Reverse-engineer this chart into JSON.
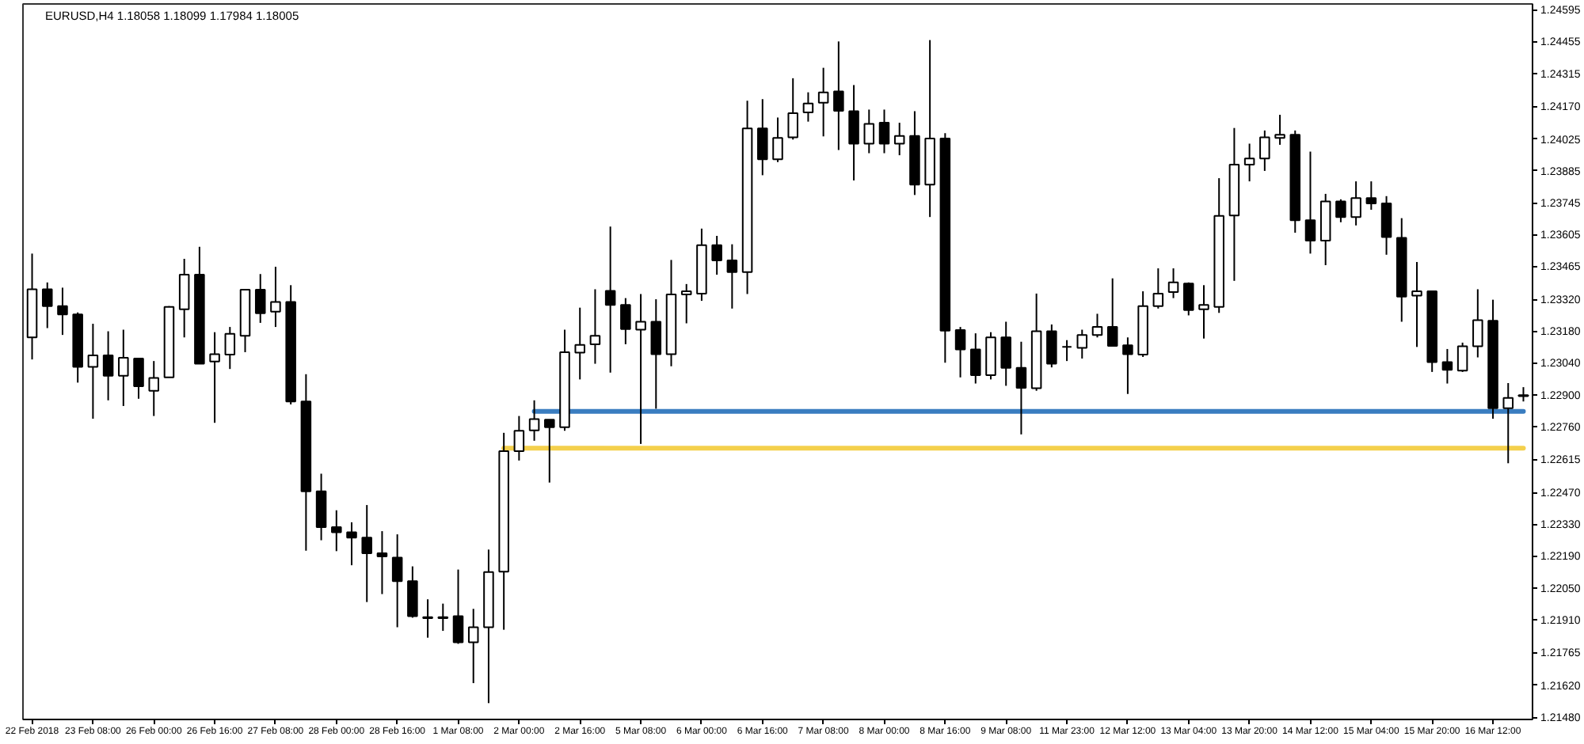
{
  "chart_data": {
    "type": "candlestick",
    "title": "EURUSD,H4  1.18058 1.18099 1.17984 1.18005",
    "color": "#000000",
    "categories": [
      "22 Feb 2018",
      null,
      null,
      null,
      "23 Feb 08:00",
      null,
      null,
      null,
      "26 Feb 00:00",
      null,
      null,
      null,
      "26 Feb 16:00",
      null,
      null,
      null,
      "27 Feb 08:00",
      null,
      null,
      null,
      "28 Feb 00:00",
      null,
      null,
      null,
      "28 Feb 16:00",
      null,
      null,
      null,
      "1 Mar 08:00",
      null,
      null,
      null,
      "2 Mar 00:00",
      null,
      null,
      null,
      "2 Mar 16:00",
      null,
      null,
      null,
      "5 Mar 08:00",
      null,
      null,
      null,
      "6 Mar 00:00",
      null,
      null,
      null,
      "6 Mar 16:00",
      null,
      null,
      null,
      "7 Mar 08:00",
      null,
      null,
      null,
      "8 Mar 00:00",
      null,
      null,
      null,
      "8 Mar 16:00",
      null,
      null,
      null,
      "9 Mar 08:00",
      null,
      null,
      null,
      "11 Mar 23:00",
      null,
      null,
      null,
      "12 Mar 12:00",
      null,
      null,
      null,
      "13 Mar 04:00",
      null,
      null,
      null,
      "13 Mar 20:00",
      null,
      null,
      null,
      "14 Mar 12:00",
      null,
      null,
      null,
      "15 Mar 04:00",
      null,
      null,
      null,
      "15 Mar 20:00",
      null,
      null,
      null,
      "16 Mar 12:00",
      null,
      null
    ],
    "ohlc": [
      [
        1.23152,
        1.23521,
        1.23055,
        1.23364
      ],
      [
        1.23364,
        1.23394,
        1.23193,
        1.2329
      ],
      [
        1.2329,
        1.23371,
        1.23163,
        1.23253
      ],
      [
        1.23253,
        1.23262,
        1.22953,
        1.23022
      ],
      [
        1.23022,
        1.23212,
        1.22794,
        1.23073
      ],
      [
        1.23073,
        1.23179,
        1.22875,
        1.22983
      ],
      [
        1.22983,
        1.23186,
        1.2285,
        1.23062
      ],
      [
        1.23059,
        1.23059,
        1.22882,
        1.22937
      ],
      [
        1.22917,
        1.23048,
        1.22806,
        1.22974
      ],
      [
        1.22976,
        1.2329,
        1.22976,
        1.23286
      ],
      [
        1.23276,
        1.23498,
        1.23152,
        1.23428
      ],
      [
        1.23428,
        1.23551,
        1.23036,
        1.23036
      ],
      [
        1.23046,
        1.23175,
        1.22776,
        1.23078
      ],
      [
        1.23076,
        1.23198,
        1.23013,
        1.23168
      ],
      [
        1.23159,
        1.23362,
        1.23087,
        1.23362
      ],
      [
        1.23362,
        1.23431,
        1.23216,
        1.23258
      ],
      [
        1.23265,
        1.23463,
        1.23198,
        1.23308
      ],
      [
        1.23308,
        1.23382,
        1.22857,
        1.2287
      ],
      [
        1.2287,
        1.2299,
        1.22213,
        1.22474
      ],
      [
        1.22474,
        1.22552,
        1.22259,
        1.22317
      ],
      [
        1.22317,
        1.22391,
        1.22211,
        1.22294
      ],
      [
        1.22294,
        1.22338,
        1.22149,
        1.22271
      ],
      [
        1.22271,
        1.22414,
        1.21987,
        1.22202
      ],
      [
        1.22202,
        1.22299,
        1.22022,
        1.22188
      ],
      [
        1.22183,
        1.22285,
        1.21876,
        1.22079
      ],
      [
        1.22079,
        1.22144,
        1.21918,
        1.21925
      ],
      [
        1.2192,
        1.21999,
        1.2183,
        1.21916
      ],
      [
        1.21916,
        1.2198,
        1.2186,
        1.2192
      ],
      [
        1.21925,
        1.2213,
        1.21803,
        1.2181
      ],
      [
        1.2181,
        1.21957,
        1.2163,
        1.21876
      ],
      [
        1.21876,
        1.22218,
        1.21542,
        1.22119
      ],
      [
        1.22121,
        1.22732,
        1.21865,
        1.22651
      ],
      [
        1.22651,
        1.22806,
        1.2261,
        1.22741
      ],
      [
        1.22743,
        1.22875,
        1.22697,
        1.22792
      ],
      [
        1.2279,
        1.2279,
        1.22513,
        1.22757
      ],
      [
        1.22757,
        1.23186,
        1.22741,
        1.23087
      ],
      [
        1.23085,
        1.23283,
        1.22967,
        1.23119
      ],
      [
        1.23122,
        1.23364,
        1.23036,
        1.23159
      ],
      [
        1.23357,
        1.2364,
        1.22997,
        1.23295
      ],
      [
        1.23295,
        1.23325,
        1.23122,
        1.23189
      ],
      [
        1.23186,
        1.23343,
        1.22683,
        1.23221
      ],
      [
        1.23221,
        1.2332,
        1.22838,
        1.23078
      ],
      [
        1.23078,
        1.23493,
        1.23025,
        1.23341
      ],
      [
        1.23341,
        1.23387,
        1.23214,
        1.23355
      ],
      [
        1.23345,
        1.23631,
        1.23313,
        1.23558
      ],
      [
        1.23558,
        1.23599,
        1.23428,
        1.23491
      ],
      [
        1.23491,
        1.23562,
        1.23279,
        1.2344
      ],
      [
        1.2344,
        1.24194,
        1.23343,
        1.24072
      ],
      [
        1.24072,
        1.24201,
        1.23866,
        1.23936
      ],
      [
        1.23936,
        1.2412,
        1.23924,
        1.2403
      ],
      [
        1.24033,
        1.24293,
        1.24023,
        1.24139
      ],
      [
        1.24143,
        1.24231,
        1.24102,
        1.24182
      ],
      [
        1.24185,
        1.24339,
        1.24037,
        1.24231
      ],
      [
        1.24235,
        1.24455,
        1.23977,
        1.2415
      ],
      [
        1.24148,
        1.24263,
        1.23843,
        1.24005
      ],
      [
        1.24005,
        1.24155,
        1.23963,
        1.24092
      ],
      [
        1.24097,
        1.24155,
        1.23963,
        1.24005
      ],
      [
        1.24005,
        1.24097,
        1.23954,
        1.24039
      ],
      [
        1.24039,
        1.24148,
        1.23779,
        1.23825
      ],
      [
        1.23825,
        1.24461,
        1.23682,
        1.24028
      ],
      [
        1.24028,
        1.24051,
        1.23041,
        1.23182
      ],
      [
        1.23184,
        1.23198,
        1.22976,
        1.23099
      ],
      [
        1.23099,
        1.2317,
        1.22949,
        1.22986
      ],
      [
        1.22986,
        1.23175,
        1.22967,
        1.23152
      ],
      [
        1.23152,
        1.23221,
        1.22939,
        1.23018
      ],
      [
        1.23018,
        1.23133,
        1.22725,
        1.2293
      ],
      [
        1.22928,
        1.23345,
        1.22917,
        1.23179
      ],
      [
        1.23179,
        1.23209,
        1.2302,
        1.23036
      ],
      [
        1.2311,
        1.2314,
        1.23048,
        1.2311
      ],
      [
        1.23106,
        1.23186,
        1.23059,
        1.23163
      ],
      [
        1.23163,
        1.23256,
        1.23152,
        1.23198
      ],
      [
        1.23198,
        1.23412,
        1.23115,
        1.23115
      ],
      [
        1.23117,
        1.23152,
        1.22903,
        1.23078
      ],
      [
        1.23076,
        1.23355,
        1.23066,
        1.2329
      ],
      [
        1.2329,
        1.23456,
        1.23279,
        1.23345
      ],
      [
        1.23352,
        1.23456,
        1.23325,
        1.23394
      ],
      [
        1.23389,
        1.23394,
        1.23249,
        1.23272
      ],
      [
        1.23276,
        1.23382,
        1.23147,
        1.23295
      ],
      [
        1.23286,
        1.23853,
        1.2326,
        1.23687
      ],
      [
        1.23689,
        1.24074,
        1.23401,
        1.23913
      ],
      [
        1.23913,
        1.24005,
        1.23839,
        1.2394
      ],
      [
        1.2394,
        1.24063,
        1.23885,
        1.24033
      ],
      [
        1.2403,
        1.24132,
        1.24,
        1.24044
      ],
      [
        1.24044,
        1.24063,
        1.23613,
        1.23668
      ],
      [
        1.23668,
        1.2397,
        1.23521,
        1.23578
      ],
      [
        1.23578,
        1.23784,
        1.2347,
        1.23751
      ],
      [
        1.23751,
        1.2376,
        1.23659,
        1.23682
      ],
      [
        1.23682,
        1.23839,
        1.23645,
        1.23765
      ],
      [
        1.23765,
        1.23839,
        1.23714,
        1.23742
      ],
      [
        1.23742,
        1.23774,
        1.23516,
        1.23594
      ],
      [
        1.2359,
        1.23677,
        1.23221,
        1.23332
      ],
      [
        1.23336,
        1.23484,
        1.2311,
        1.23355
      ],
      [
        1.23355,
        1.23355,
        1.23,
        1.23043
      ],
      [
        1.23043,
        1.23101,
        1.22949,
        1.23009
      ],
      [
        1.23006,
        1.23129,
        1.23,
        1.23113
      ],
      [
        1.23113,
        1.23364,
        1.23064,
        1.23228
      ],
      [
        1.23225,
        1.23318,
        1.22794,
        1.2284
      ],
      [
        1.2284,
        1.22951,
        1.22598,
        1.22886
      ],
      [
        1.22893,
        1.22933,
        1.2287,
        1.22898
      ]
    ],
    "series": [
      {
        "type": "line",
        "color": "#f4d04c",
        "values": [
          null,
          null,
          null,
          null,
          null,
          null,
          null,
          null,
          null,
          null,
          null,
          null,
          null,
          null,
          null,
          null,
          null,
          null,
          null,
          null,
          null,
          null,
          null,
          null,
          null,
          null,
          null,
          null,
          null,
          null,
          null,
          1.22664,
          1.22664,
          1.22664,
          1.22664,
          1.22664,
          1.22664,
          1.22664,
          1.22664,
          1.22664,
          1.22664,
          1.22664,
          1.22664,
          1.22664,
          1.22664,
          1.22664,
          1.22664,
          1.22664,
          1.22664,
          1.22664,
          1.22664,
          1.22664,
          1.22664,
          1.22664,
          1.22664,
          1.22664,
          1.22664,
          1.22664,
          1.22664,
          1.22664,
          1.22664,
          1.22664,
          1.22664,
          1.22664,
          1.22664,
          1.22664,
          1.22664,
          1.22664,
          1.22664,
          1.22664,
          1.22664,
          1.22664,
          1.22664,
          1.22664,
          1.22664,
          1.22664,
          1.22664,
          1.22664,
          1.22664,
          1.22664,
          1.22664,
          1.22664,
          1.22664,
          1.22664,
          1.22664,
          1.22664,
          1.22664,
          1.22664,
          1.22664,
          1.22664,
          1.22664,
          1.22664,
          1.22664,
          1.22664,
          1.22664,
          1.22664,
          1.22664,
          1.22664,
          1.22664
        ]
      },
      {
        "type": "line",
        "color": "#3a7dc0",
        "values": [
          null,
          null,
          null,
          null,
          null,
          null,
          null,
          null,
          null,
          null,
          null,
          null,
          null,
          null,
          null,
          null,
          null,
          null,
          null,
          null,
          null,
          null,
          null,
          null,
          null,
          null,
          null,
          null,
          null,
          null,
          null,
          null,
          null,
          1.22826,
          1.22826,
          1.22826,
          1.22826,
          1.22826,
          1.22826,
          1.22826,
          1.22826,
          1.22826,
          1.22826,
          1.22826,
          1.22826,
          1.22826,
          1.22826,
          1.22826,
          1.22826,
          1.22826,
          1.22826,
          1.22826,
          1.22826,
          1.22826,
          1.22826,
          1.22826,
          1.22826,
          1.22826,
          1.22826,
          1.22826,
          1.22826,
          1.22826,
          1.22826,
          1.22826,
          1.22826,
          1.22826,
          1.22826,
          1.22826,
          1.22826,
          1.22826,
          1.22826,
          1.22826,
          1.22826,
          1.22826,
          1.22826,
          1.22826,
          1.22826,
          1.22826,
          1.22826,
          1.22826,
          1.22826,
          1.22826,
          1.22826,
          1.22826,
          1.22826,
          1.22826,
          1.22826,
          1.22826,
          1.22826,
          1.22826,
          1.22826,
          1.22826,
          1.22826,
          1.22826,
          1.22826,
          1.22826,
          1.22826,
          1.22826,
          1.22826
        ]
      }
    ],
    "ylim": [
      1.2147,
      1.2462
    ],
    "yticks": [
      1.24595,
      1.24455,
      1.24315,
      {
        "value": 1.2417,
        "label": "1.24170"
      },
      1.24025,
      1.23885,
      1.23745,
      1.23605,
      1.23465,
      {
        "value": 1.2332,
        "label": "1.23320"
      },
      {
        "value": 1.2318,
        "label": "1.23180"
      },
      {
        "value": 1.2304,
        "label": "1.23040"
      },
      {
        "value": 1.229,
        "label": "1.22900"
      },
      {
        "value": 1.2276,
        "label": "1.22760"
      },
      1.22615,
      {
        "value": 1.2247,
        "label": "1.22470"
      },
      {
        "value": 1.2233,
        "label": "1.22330"
      },
      {
        "value": 1.2219,
        "label": "1.22190"
      },
      {
        "value": 1.2205,
        "label": "1.22050"
      },
      {
        "value": 1.2191,
        "label": "1.21910"
      },
      1.21765,
      {
        "value": 1.2162,
        "label": "1.21620"
      },
      {
        "value": 1.2148,
        "label": "1.21480"
      }
    ]
  }
}
